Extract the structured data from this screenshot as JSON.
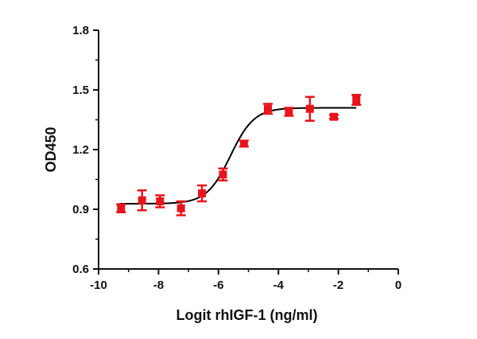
{
  "chart_data": {
    "type": "scatter",
    "title": "",
    "xlabel": "Logit rhIGF-1 (ng/ml)",
    "ylabel": "OD450",
    "xlim": [
      -10,
      0
    ],
    "ylim": [
      0.6,
      1.8
    ],
    "x_ticks": [
      -10,
      -8,
      -6,
      -4,
      -2,
      0
    ],
    "y_ticks": [
      0.6,
      0.9,
      1.2,
      1.5,
      1.8
    ],
    "y_tick_labels": [
      "0.6",
      "0.9",
      "1.2",
      "1.5",
      "1.8"
    ],
    "grid": false,
    "legend": "none",
    "marker_color": "#e8141c",
    "curve_color": "#000000",
    "points": [
      {
        "x": -9.25,
        "y": 0.905,
        "err": 0.02
      },
      {
        "x": -8.55,
        "y": 0.945,
        "err": 0.05
      },
      {
        "x": -7.95,
        "y": 0.94,
        "err": 0.03
      },
      {
        "x": -7.25,
        "y": 0.905,
        "err": 0.035
      },
      {
        "x": -6.55,
        "y": 0.98,
        "err": 0.04
      },
      {
        "x": -5.85,
        "y": 1.075,
        "err": 0.03
      },
      {
        "x": -5.15,
        "y": 1.23,
        "err": 0.015
      },
      {
        "x": -4.35,
        "y": 1.405,
        "err": 0.025
      },
      {
        "x": -3.65,
        "y": 1.39,
        "err": 0.02
      },
      {
        "x": -2.95,
        "y": 1.405,
        "err": 0.06
      },
      {
        "x": -2.15,
        "y": 1.365,
        "err": 0.01
      },
      {
        "x": -1.4,
        "y": 1.45,
        "err": 0.025
      }
    ],
    "fit_curve": {
      "model": "four-parameter logistic",
      "bottom": 0.928,
      "top": 1.41,
      "logEC50": -5.6,
      "hill": 1.1,
      "x_range": [
        -9.3,
        -1.4
      ]
    }
  }
}
